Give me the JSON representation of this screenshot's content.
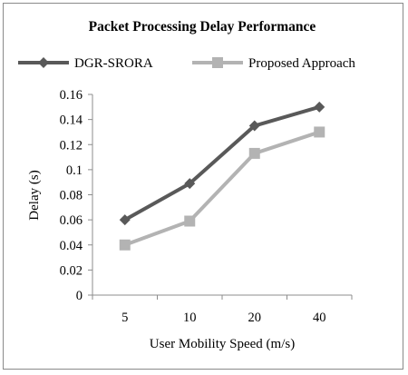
{
  "chart_data": {
    "type": "line",
    "title": "Packet Processing Delay Performance",
    "xlabel": "User Mobility Speed (m/s)",
    "ylabel": "Delay (s)",
    "categories": [
      "5",
      "10",
      "20",
      "40"
    ],
    "ylim": [
      0,
      0.16
    ],
    "yticks": [
      "0",
      "0.02",
      "0.04",
      "0.06",
      "0.08",
      "0.1",
      "0.12",
      "0.14",
      "0.16"
    ],
    "grid": false,
    "legend_position": "top",
    "series": [
      {
        "name": "DGR-SRORA",
        "values": [
          0.06,
          0.089,
          0.135,
          0.15
        ],
        "color": "#595959",
        "marker": "diamond"
      },
      {
        "name": "Proposed Approach",
        "values": [
          0.04,
          0.059,
          0.113,
          0.13
        ],
        "color": "#b3b3b3",
        "marker": "square"
      }
    ]
  }
}
